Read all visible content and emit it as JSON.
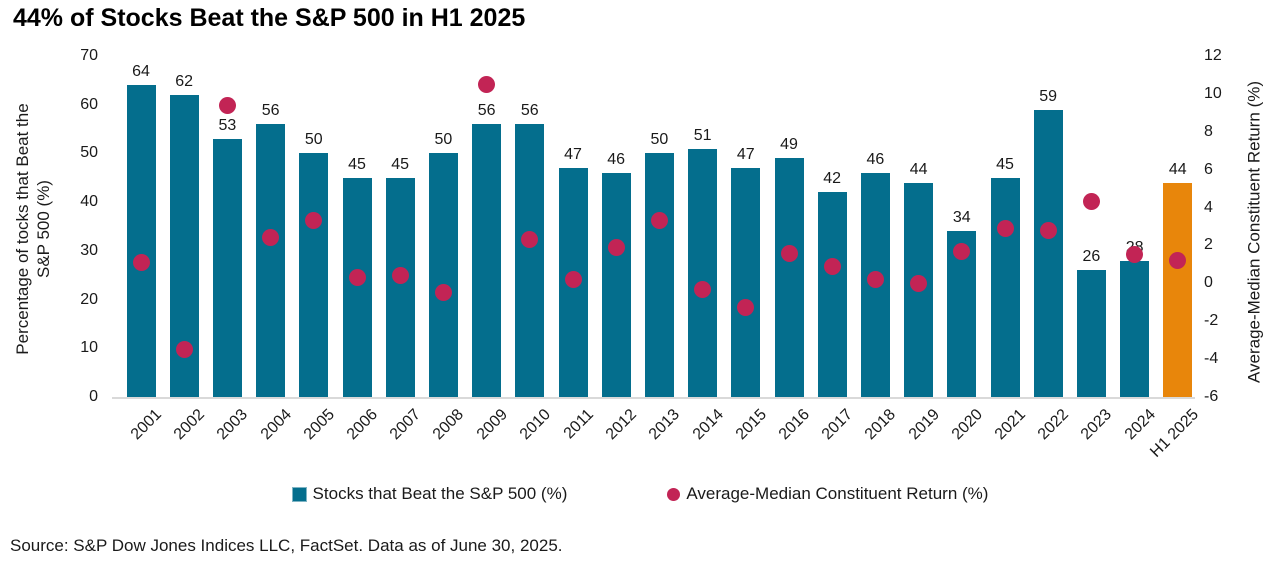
{
  "title": "44% of Stocks Beat the S&P 500 in H1 2025",
  "source": "Source: S&P Dow Jones Indices LLC, FactSet. Data as of June 30, 2025.",
  "colors": {
    "bar": "#046e8d",
    "bar_highlight": "#e8860b",
    "dot": "#c22455",
    "baseline": "#d9d9d9",
    "text": "#1a1a1a"
  },
  "chart_data": {
    "type": "bar",
    "categories": [
      "2001",
      "2002",
      "2003",
      "2004",
      "2005",
      "2006",
      "2007",
      "2008",
      "2009",
      "2010",
      "2011",
      "2012",
      "2013",
      "2014",
      "2015",
      "2016",
      "2017",
      "2018",
      "2019",
      "2020",
      "2021",
      "2022",
      "2023",
      "2024",
      "H1 2025"
    ],
    "series": [
      {
        "name": "Stocks that Beat the S&P 500 (%)",
        "type": "bar",
        "axis": "left",
        "values": [
          64,
          62,
          53,
          56,
          50,
          45,
          45,
          50,
          56,
          56,
          47,
          46,
          50,
          51,
          47,
          49,
          42,
          46,
          44,
          34,
          45,
          59,
          26,
          28,
          44
        ],
        "highlight_category": "H1 2025"
      },
      {
        "name": "Average-Median Constituent Return (%)",
        "type": "scatter",
        "axis": "right",
        "values": [
          1.1,
          -3.5,
          9.4,
          2.4,
          3.3,
          0.3,
          0.4,
          -0.5,
          10.5,
          2.3,
          0.2,
          1.9,
          3.3,
          -0.3,
          -1.3,
          1.6,
          0.9,
          0.2,
          0.0,
          1.7,
          2.9,
          2.8,
          4.3,
          1.5,
          1.2
        ]
      }
    ],
    "left_axis": {
      "label": "Percentage of tocks that Beat the\nS&P 500 (%)",
      "ticks": [
        70,
        60,
        50,
        40,
        30,
        20,
        10,
        0
      ],
      "min": 0,
      "max": 70
    },
    "right_axis": {
      "label": "Average-Median Constituent Return (%)",
      "ticks": [
        12,
        10,
        8,
        6,
        4,
        2,
        0,
        -2,
        -4,
        -6
      ],
      "min": -6,
      "max": 12
    },
    "legend_position": "bottom",
    "grid": false
  }
}
